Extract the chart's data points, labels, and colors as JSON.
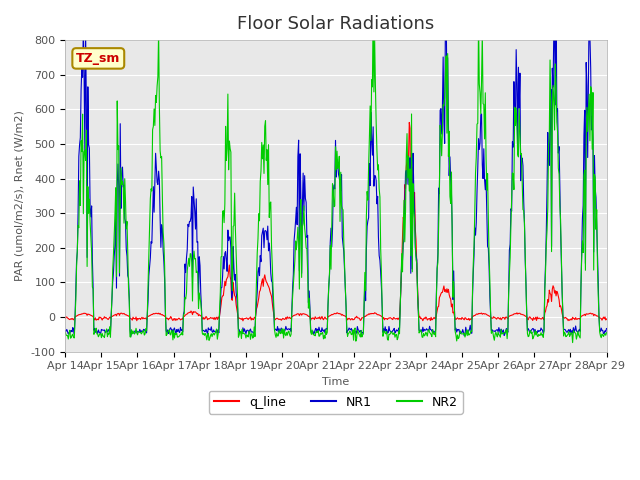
{
  "title": "Floor Solar Radiations",
  "ylabel": "PAR (umol/m2/s), Rnet (W/m2)",
  "xlabel": "Time",
  "ylim": [
    -100,
    800
  ],
  "yticks": [
    -100,
    0,
    100,
    200,
    300,
    400,
    500,
    600,
    700,
    800
  ],
  "xtick_labels": [
    "Apr 14",
    "Apr 15",
    "Apr 16",
    "Apr 17",
    "Apr 18",
    "Apr 19",
    "Apr 20",
    "Apr 21",
    "Apr 22",
    "Apr 23",
    "Apr 24",
    "Apr 25",
    "Apr 26",
    "Apr 27",
    "Apr 28",
    "Apr 29"
  ],
  "legend_label": "TZ_sm",
  "line_colors": {
    "q_line": "#ff0000",
    "NR1": "#0000cc",
    "NR2": "#00cc00"
  },
  "background_color": "#e8e8e8",
  "title_fontsize": 13
}
